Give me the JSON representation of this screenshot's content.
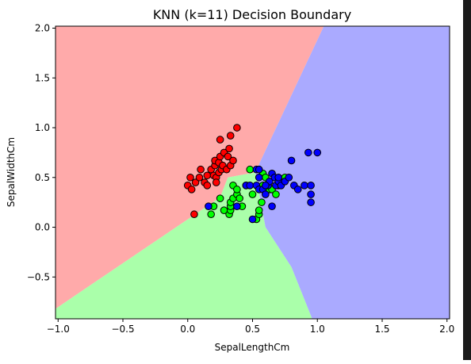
{
  "chart_data": {
    "type": "scatter",
    "title": "KNN (k=11) Decision Boundary",
    "xlabel": "SepalLengthCm",
    "ylabel": "SepalWidthCm",
    "xlim": [
      -1.02,
      2.02
    ],
    "ylim": [
      -0.92,
      2.02
    ],
    "xticks": [
      -1.0,
      -0.5,
      0.0,
      0.5,
      1.0,
      1.5,
      2.0
    ],
    "xtick_labels": [
      "−1.0",
      "−0.5",
      "0.0",
      "0.5",
      "1.0",
      "1.5",
      "2.0"
    ],
    "yticks": [
      -0.5,
      0.0,
      0.5,
      1.0,
      1.5,
      2.0
    ],
    "ytick_labels": [
      "−0.5",
      "0.0",
      "0.5",
      "1.0",
      "1.5",
      "2.0"
    ],
    "grid": false,
    "legend": "none",
    "region_colors": {
      "red": "#ffaaaa",
      "green": "#aaffaa",
      "blue": "#aaaaff"
    },
    "regions": {
      "red": [
        [
          -1.02,
          2.02
        ],
        [
          1.05,
          2.02
        ],
        [
          0.52,
          0.55
        ],
        [
          0.31,
          0.5
        ],
        [
          0.25,
          0.3
        ],
        [
          -1.02,
          -0.82
        ]
      ],
      "green": [
        [
          -1.02,
          -0.82
        ],
        [
          0.25,
          0.3
        ],
        [
          0.31,
          0.5
        ],
        [
          0.52,
          0.55
        ],
        [
          0.55,
          0.35
        ],
        [
          0.6,
          0.0
        ],
        [
          0.8,
          -0.4
        ],
        [
          0.96,
          -0.92
        ],
        [
          -1.02,
          -0.92
        ]
      ],
      "blue": [
        [
          1.05,
          2.02
        ],
        [
          2.02,
          2.02
        ],
        [
          2.02,
          -0.92
        ],
        [
          0.96,
          -0.92
        ],
        [
          0.8,
          -0.4
        ],
        [
          0.6,
          0.0
        ],
        [
          0.55,
          0.35
        ],
        [
          0.52,
          0.55
        ]
      ]
    },
    "series": [
      {
        "color": "#ff0000",
        "points": [
          [
            0.0,
            0.42
          ],
          [
            0.02,
            0.5
          ],
          [
            0.03,
            0.38
          ],
          [
            0.06,
            0.45
          ],
          [
            0.09,
            0.5
          ],
          [
            0.1,
            0.58
          ],
          [
            0.13,
            0.45
          ],
          [
            0.15,
            0.42
          ],
          [
            0.15,
            0.52
          ],
          [
            0.18,
            0.58
          ],
          [
            0.2,
            0.52
          ],
          [
            0.21,
            0.62
          ],
          [
            0.21,
            0.67
          ],
          [
            0.22,
            0.5
          ],
          [
            0.22,
            0.45
          ],
          [
            0.24,
            0.55
          ],
          [
            0.24,
            0.65
          ],
          [
            0.25,
            0.71
          ],
          [
            0.26,
            0.58
          ],
          [
            0.27,
            0.62
          ],
          [
            0.28,
            0.75
          ],
          [
            0.3,
            0.58
          ],
          [
            0.31,
            0.71
          ],
          [
            0.32,
            0.79
          ],
          [
            0.33,
            0.62
          ],
          [
            0.35,
            0.67
          ],
          [
            0.25,
            0.88
          ],
          [
            0.33,
            0.92
          ],
          [
            0.38,
            1.0
          ],
          [
            0.05,
            0.13
          ]
        ]
      },
      {
        "color": "#00ff00",
        "points": [
          [
            0.18,
            0.13
          ],
          [
            0.2,
            0.21
          ],
          [
            0.25,
            0.29
          ],
          [
            0.28,
            0.17
          ],
          [
            0.32,
            0.13
          ],
          [
            0.33,
            0.17
          ],
          [
            0.33,
            0.21
          ],
          [
            0.33,
            0.25
          ],
          [
            0.35,
            0.29
          ],
          [
            0.35,
            0.42
          ],
          [
            0.38,
            0.33
          ],
          [
            0.38,
            0.38
          ],
          [
            0.4,
            0.29
          ],
          [
            0.42,
            0.21
          ],
          [
            0.45,
            0.42
          ],
          [
            0.48,
            0.58
          ],
          [
            0.5,
            0.33
          ],
          [
            0.53,
            0.08
          ],
          [
            0.55,
            0.13
          ],
          [
            0.55,
            0.17
          ],
          [
            0.57,
            0.25
          ],
          [
            0.58,
            0.42
          ],
          [
            0.58,
            0.54
          ],
          [
            0.6,
            0.5
          ],
          [
            0.63,
            0.38
          ],
          [
            0.65,
            0.38
          ],
          [
            0.68,
            0.33
          ],
          [
            0.7,
            0.42
          ],
          [
            0.73,
            0.46
          ],
          [
            0.75,
            0.5
          ]
        ]
      },
      {
        "color": "#0000ff",
        "points": [
          [
            0.16,
            0.21
          ],
          [
            0.38,
            0.21
          ],
          [
            0.45,
            0.42
          ],
          [
            0.48,
            0.42
          ],
          [
            0.5,
            0.08
          ],
          [
            0.53,
            0.58
          ],
          [
            0.53,
            0.42
          ],
          [
            0.55,
            0.58
          ],
          [
            0.55,
            0.38
          ],
          [
            0.58,
            0.38
          ],
          [
            0.6,
            0.33
          ],
          [
            0.62,
            0.42
          ],
          [
            0.63,
            0.46
          ],
          [
            0.65,
            0.54
          ],
          [
            0.65,
            0.21
          ],
          [
            0.67,
            0.5
          ],
          [
            0.68,
            0.42
          ],
          [
            0.7,
            0.46
          ],
          [
            0.7,
            0.5
          ],
          [
            0.72,
            0.42
          ],
          [
            0.75,
            0.46
          ],
          [
            0.78,
            0.5
          ],
          [
            0.8,
            0.67
          ],
          [
            0.82,
            0.42
          ],
          [
            0.85,
            0.38
          ],
          [
            0.9,
            0.42
          ],
          [
            0.93,
            0.75
          ],
          [
            0.95,
            0.42
          ],
          [
            0.95,
            0.33
          ],
          [
            0.95,
            0.25
          ],
          [
            1.0,
            0.75
          ],
          [
            0.6,
            0.42
          ],
          [
            0.55,
            0.5
          ]
        ]
      }
    ]
  }
}
